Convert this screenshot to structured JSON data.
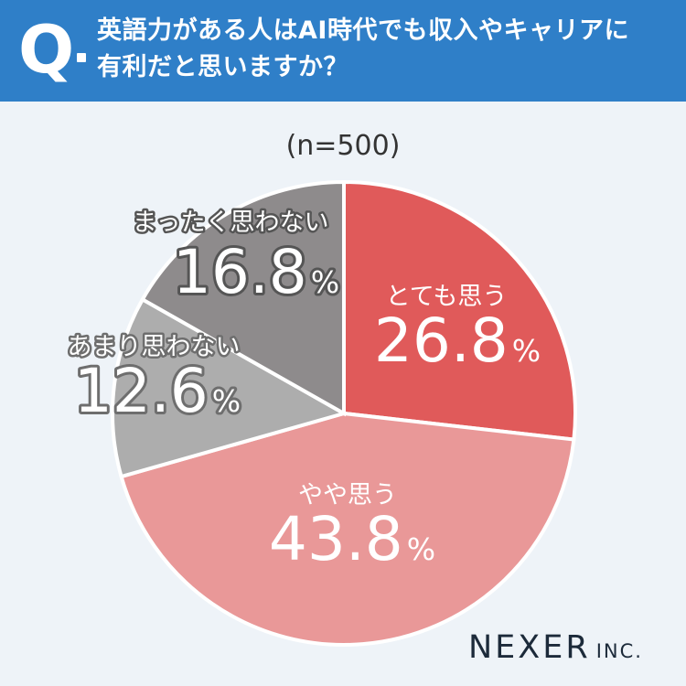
{
  "question": {
    "mark": "Q",
    "line1": "英語力がある人はAI時代でも収入やキャリアに",
    "line2": "有利だと思いますか？"
  },
  "sample_note": "(n=500)",
  "brand": {
    "name": "NEXER",
    "suffix": "INC."
  },
  "chart_data": {
    "type": "pie",
    "unit": "%",
    "slices": [
      {
        "label": "とても思う",
        "value": 26.8,
        "color": "#e05a5a",
        "label_color": "#ffffff",
        "outline": "none"
      },
      {
        "label": "やや思う",
        "value": 43.8,
        "color": "#e99898",
        "label_color": "#ffffff",
        "outline": "none"
      },
      {
        "label": "あまり思わない",
        "value": 12.6,
        "color": "#adadad",
        "label_color": "#ffffff",
        "outline": "#6e6e6e"
      },
      {
        "label": "まったく思わない",
        "value": 16.8,
        "color": "#8e8b8c",
        "label_color": "#ffffff",
        "outline": "#555555"
      }
    ]
  }
}
